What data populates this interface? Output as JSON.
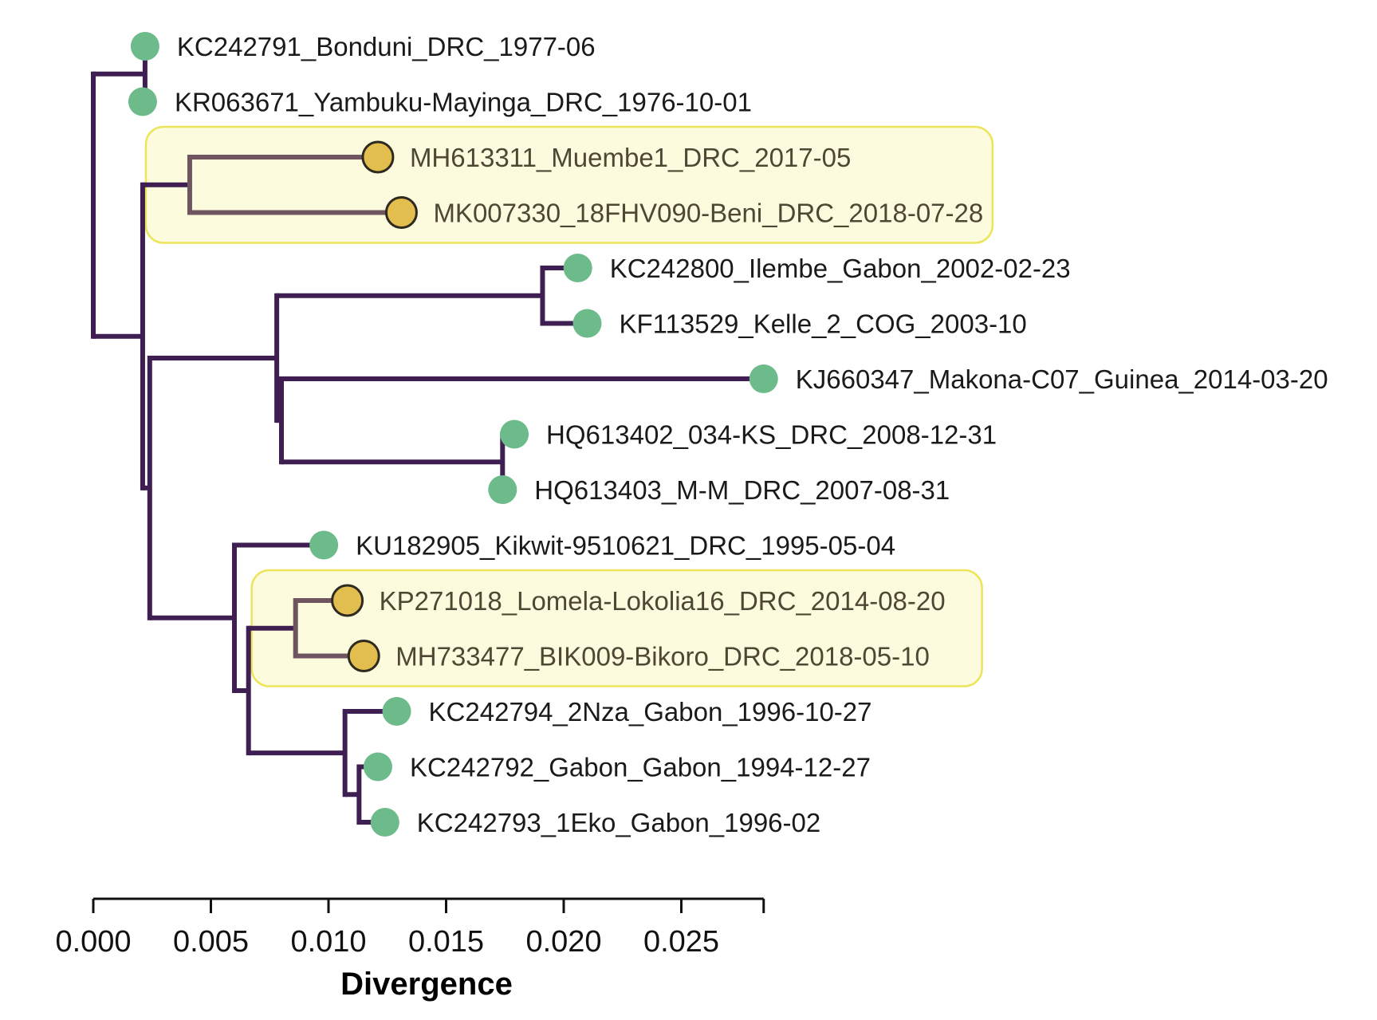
{
  "colors": {
    "branch": "#3f1f52",
    "branch_highlight": "#6e5560",
    "tip_green": "#6dbb8a",
    "tip_gold": "#e2be4f",
    "tip_gold_stroke": "#2e2a1f",
    "highlight_fill": "#fdfbdd",
    "highlight_stroke": "#ece55a"
  },
  "tips": [
    {
      "id": "t0",
      "label": "KC242791_Bonduni_DRC_1977-06",
      "group": "green",
      "divergence": 0.0022
    },
    {
      "id": "t1",
      "label": "KR063671_Yambuku-Mayinga_DRC_1976-10-01",
      "group": "green",
      "divergence": 0.0021
    },
    {
      "id": "t2",
      "label": "MH613311_Muembe1_DRC_2017-05",
      "group": "gold",
      "divergence": 0.0121
    },
    {
      "id": "t3",
      "label": "MK007330_18FHV090-Beni_DRC_2018-07-28",
      "group": "gold",
      "divergence": 0.0131
    },
    {
      "id": "t4",
      "label": "KC242800_Ilembe_Gabon_2002-02-23",
      "group": "green",
      "divergence": 0.0206
    },
    {
      "id": "t5",
      "label": "KF113529_Kelle_2_COG_2003-10",
      "group": "green",
      "divergence": 0.021
    },
    {
      "id": "t6",
      "label": "KJ660347_Makona-C07_Guinea_2014-03-20",
      "group": "green",
      "divergence": 0.0285
    },
    {
      "id": "t7",
      "label": "HQ613402_034-KS_DRC_2008-12-31",
      "group": "green",
      "divergence": 0.0179
    },
    {
      "id": "t8",
      "label": "HQ613403_M-M_DRC_2007-08-31",
      "group": "green",
      "divergence": 0.0174
    },
    {
      "id": "t9",
      "label": "KU182905_Kikwit-9510621_DRC_1995-05-04",
      "group": "green",
      "divergence": 0.0098
    },
    {
      "id": "t10",
      "label": "KP271018_Lomela-Lokolia16_DRC_2014-08-20",
      "group": "gold",
      "divergence": 0.0108
    },
    {
      "id": "t11",
      "label": "MH733477_BIK009-Bikoro_DRC_2018-05-10",
      "group": "gold",
      "divergence": 0.0115
    },
    {
      "id": "t12",
      "label": "KC242794_2Nza_Gabon_1996-10-27",
      "group": "green",
      "divergence": 0.0129
    },
    {
      "id": "t13",
      "label": "KC242792_Gabon_Gabon_1994-12-27",
      "group": "green",
      "divergence": 0.0121
    },
    {
      "id": "t14",
      "label": "KC242793_1Eko_Gabon_1996-02",
      "group": "green",
      "divergence": 0.0124
    }
  ],
  "nodes": [
    {
      "id": "n0",
      "divergence": 0.0,
      "children": [
        "n1",
        "n2"
      ]
    },
    {
      "id": "n1",
      "divergence": 0.0022,
      "children": [
        "t0",
        "t1"
      ]
    },
    {
      "id": "n2",
      "divergence": 0.0021,
      "children": [
        "n3",
        "n4"
      ]
    },
    {
      "id": "n3",
      "divergence": 0.0041,
      "children": [
        "t2",
        "t3"
      ],
      "highlight": true
    },
    {
      "id": "n4",
      "divergence": 0.0024,
      "children": [
        "n5",
        "n8"
      ]
    },
    {
      "id": "n5",
      "divergence": 0.0078,
      "children": [
        "n6",
        "n7"
      ]
    },
    {
      "id": "n6",
      "divergence": 0.0191,
      "children": [
        "t4",
        "t5"
      ]
    },
    {
      "id": "n7",
      "divergence": 0.008,
      "children": [
        "t6",
        "n10"
      ]
    },
    {
      "id": "n10",
      "divergence": 0.0174,
      "children": [
        "t7",
        "t8"
      ]
    },
    {
      "id": "n8",
      "divergence": 0.006,
      "children": [
        "t9",
        "n9"
      ]
    },
    {
      "id": "n9",
      "divergence": 0.0066,
      "children": [
        "n11",
        "n12"
      ]
    },
    {
      "id": "n11",
      "divergence": 0.0086,
      "children": [
        "t10",
        "t11"
      ],
      "highlight": true
    },
    {
      "id": "n12",
      "divergence": 0.0107,
      "children": [
        "t12",
        "n13"
      ]
    },
    {
      "id": "n13",
      "divergence": 0.0113,
      "children": [
        "t13",
        "t14"
      ]
    }
  ],
  "highlight_boxes": [
    {
      "name": "highlight-box-muembe-beni",
      "tips": [
        "t2",
        "t3"
      ]
    },
    {
      "name": "highlight-box-lomela-bikoro",
      "tips": [
        "t10",
        "t11"
      ]
    }
  ],
  "axis": {
    "title": "Divergence",
    "range": [
      0,
      0.0285
    ],
    "ticks": [
      {
        "value": 0.0,
        "label": "0.000"
      },
      {
        "value": 0.005,
        "label": "0.005"
      },
      {
        "value": 0.01,
        "label": "0.010"
      },
      {
        "value": 0.015,
        "label": "0.015"
      },
      {
        "value": 0.02,
        "label": "0.020"
      },
      {
        "value": 0.025,
        "label": "0.025"
      }
    ]
  }
}
